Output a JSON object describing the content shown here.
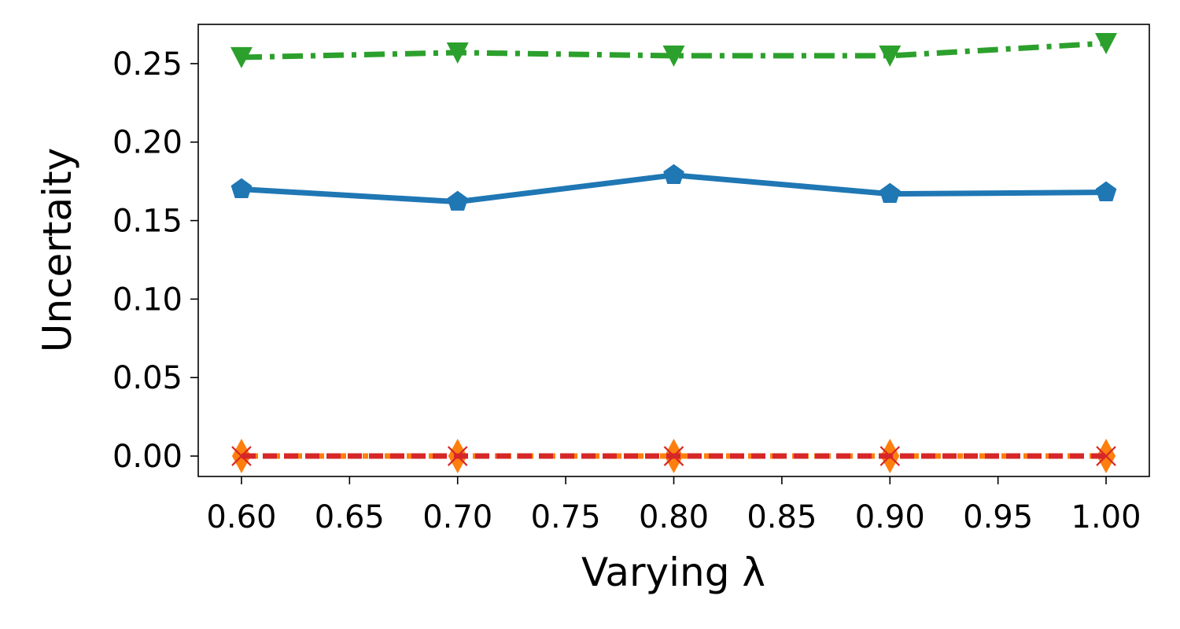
{
  "chart_data": {
    "type": "line",
    "xlabel": "Varying λ",
    "ylabel": "Uncertaity",
    "xlim": [
      0.58,
      1.02
    ],
    "ylim": [
      -0.013,
      0.275
    ],
    "x_ticks": [
      "0.60",
      "0.65",
      "0.70",
      "0.75",
      "0.80",
      "0.85",
      "0.90",
      "0.95",
      "1.00"
    ],
    "y_ticks": [
      "0.00",
      "0.05",
      "0.10",
      "0.15",
      "0.20",
      "0.25"
    ],
    "grid": false,
    "x": [
      0.6,
      0.7,
      0.8,
      0.9,
      1.0
    ],
    "series": [
      {
        "color": "#2ca02c",
        "line_style": "dash-dot",
        "marker": "triangle-down",
        "values": [
          0.254,
          0.257,
          0.255,
          0.255,
          0.263
        ]
      },
      {
        "color": "#1f77b4",
        "line_style": "solid",
        "marker": "pentagon",
        "values": [
          0.17,
          0.162,
          0.179,
          0.167,
          0.168
        ]
      },
      {
        "color": "#ff7f0e",
        "line_style": "dotted",
        "marker": "diamond",
        "values": [
          0.0,
          0.0,
          0.0,
          0.0,
          0.0
        ]
      },
      {
        "color": "#d62728",
        "line_style": "dashed",
        "marker": "x",
        "values": [
          0.0,
          0.0,
          0.0,
          0.0,
          0.0
        ]
      }
    ]
  }
}
